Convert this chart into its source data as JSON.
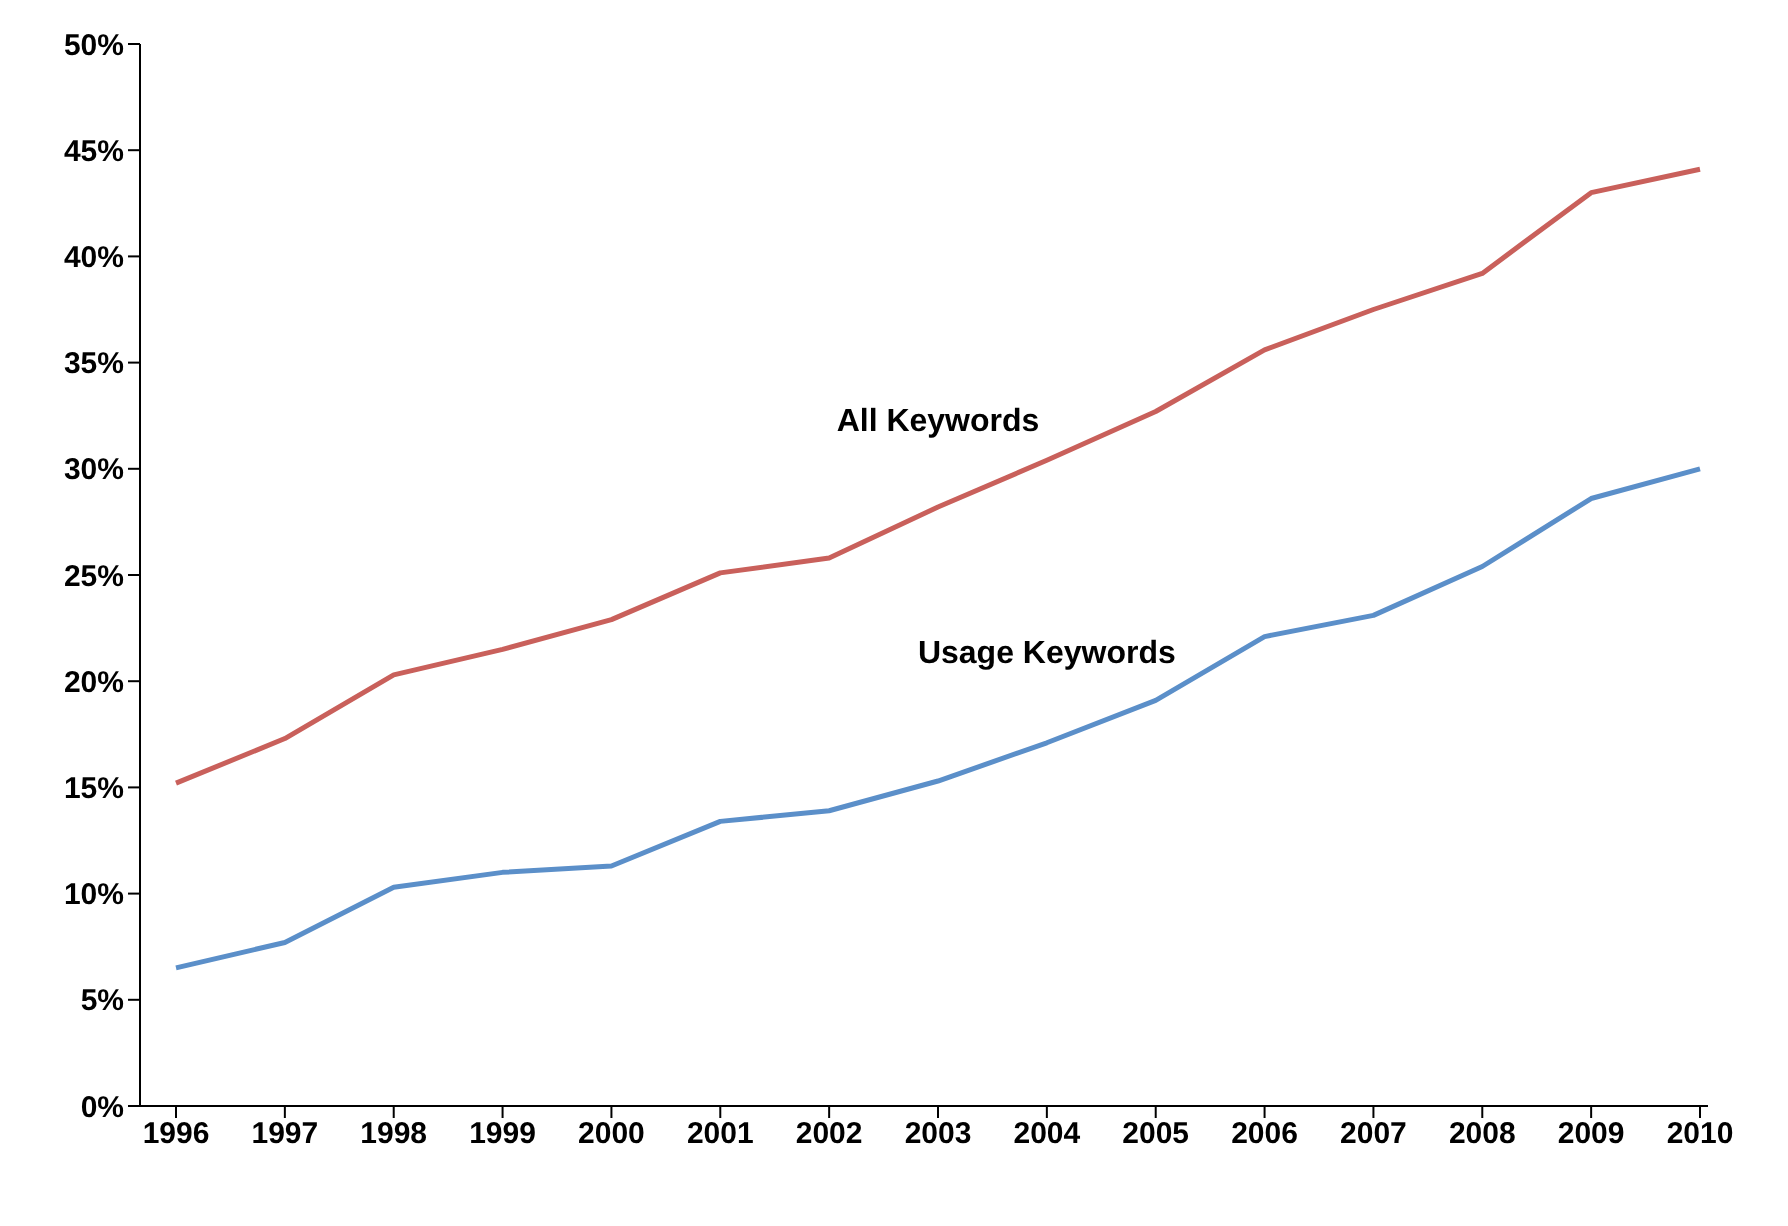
{
  "chart_data": {
    "type": "line",
    "categories": [
      "1996",
      "1997",
      "1998",
      "1999",
      "2000",
      "2001",
      "2002",
      "2003",
      "2004",
      "2005",
      "2006",
      "2007",
      "2008",
      "2009",
      "2010"
    ],
    "series": [
      {
        "name": "All Keywords",
        "color": "#c9605b",
        "values": [
          15.2,
          17.3,
          20.3,
          21.5,
          22.9,
          25.1,
          25.8,
          28.2,
          30.4,
          32.7,
          35.6,
          37.5,
          39.2,
          43.0,
          44.1
        ]
      },
      {
        "name": "Usage Keywords",
        "color": "#5b8fc9",
        "values": [
          6.5,
          7.7,
          10.3,
          11.0,
          11.3,
          13.4,
          13.9,
          15.3,
          17.1,
          19.1,
          22.1,
          23.1,
          25.4,
          28.6,
          30.0
        ]
      }
    ],
    "ylim": [
      0,
      50
    ],
    "yticks": [
      {
        "value": 0,
        "label": "0%"
      },
      {
        "value": 5,
        "label": "5%"
      },
      {
        "value": 10,
        "label": "10%"
      },
      {
        "value": 15,
        "label": "15%"
      },
      {
        "value": 20,
        "label": "20%"
      },
      {
        "value": 25,
        "label": "25%"
      },
      {
        "value": 30,
        "label": "30%"
      },
      {
        "value": 35,
        "label": "35%"
      },
      {
        "value": 40,
        "label": "40%"
      },
      {
        "value": 45,
        "label": "45%"
      },
      {
        "value": 50,
        "label": "50%"
      }
    ],
    "grid": false,
    "legend": false,
    "marker": "none",
    "line_style": "solid"
  }
}
